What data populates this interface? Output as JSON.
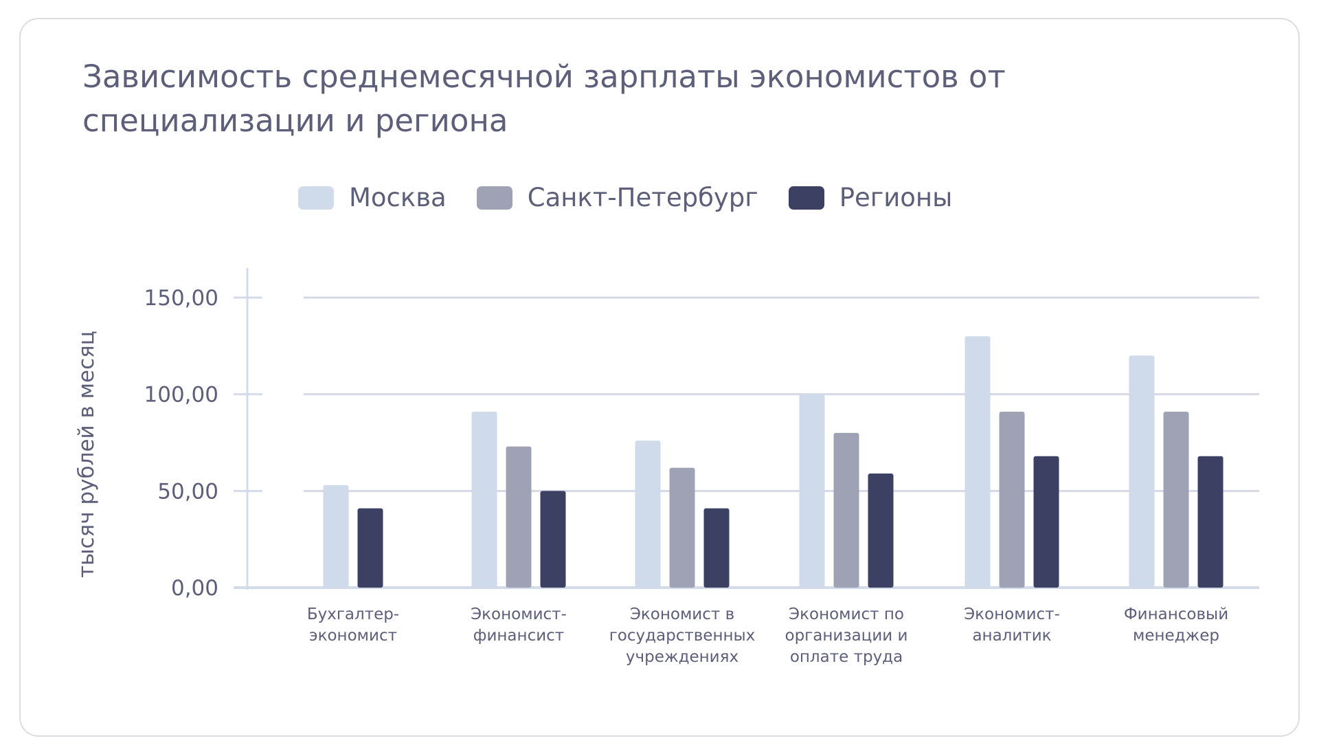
{
  "chart_data": {
    "type": "bar",
    "title": "Зависимость среднемесячной зарплаты экономистов от специализации и региона",
    "ylabel": "тысяч рублей в месяц",
    "xlabel": "",
    "ylim": [
      0,
      150
    ],
    "yticks": [
      0,
      50,
      100,
      150
    ],
    "ytick_labels": [
      "0,00",
      "50,00",
      "100,00",
      "150,00"
    ],
    "grid": true,
    "legend_position": "top-center",
    "categories": [
      [
        "Бухгалтер-",
        "экономист"
      ],
      [
        "Экономист-",
        "финансист"
      ],
      [
        "Экономист в",
        "государственных",
        "учреждениях"
      ],
      [
        "Экономист по",
        "организации и",
        "оплате труда"
      ],
      [
        "Экономист-",
        "аналитик"
      ],
      [
        "Финансовый",
        "менеджер"
      ]
    ],
    "series": [
      {
        "name": "Москва",
        "color": "#cfdbea",
        "values": [
          53,
          91,
          76,
          100,
          130,
          120
        ]
      },
      {
        "name": "Санкт-Петербург",
        "color": "#9fa2b4",
        "values": [
          null,
          73,
          62,
          80,
          91,
          91
        ]
      },
      {
        "name": "Регионы",
        "color": "#3c4063",
        "values": [
          41,
          50,
          41,
          59,
          68,
          68
        ]
      }
    ]
  }
}
